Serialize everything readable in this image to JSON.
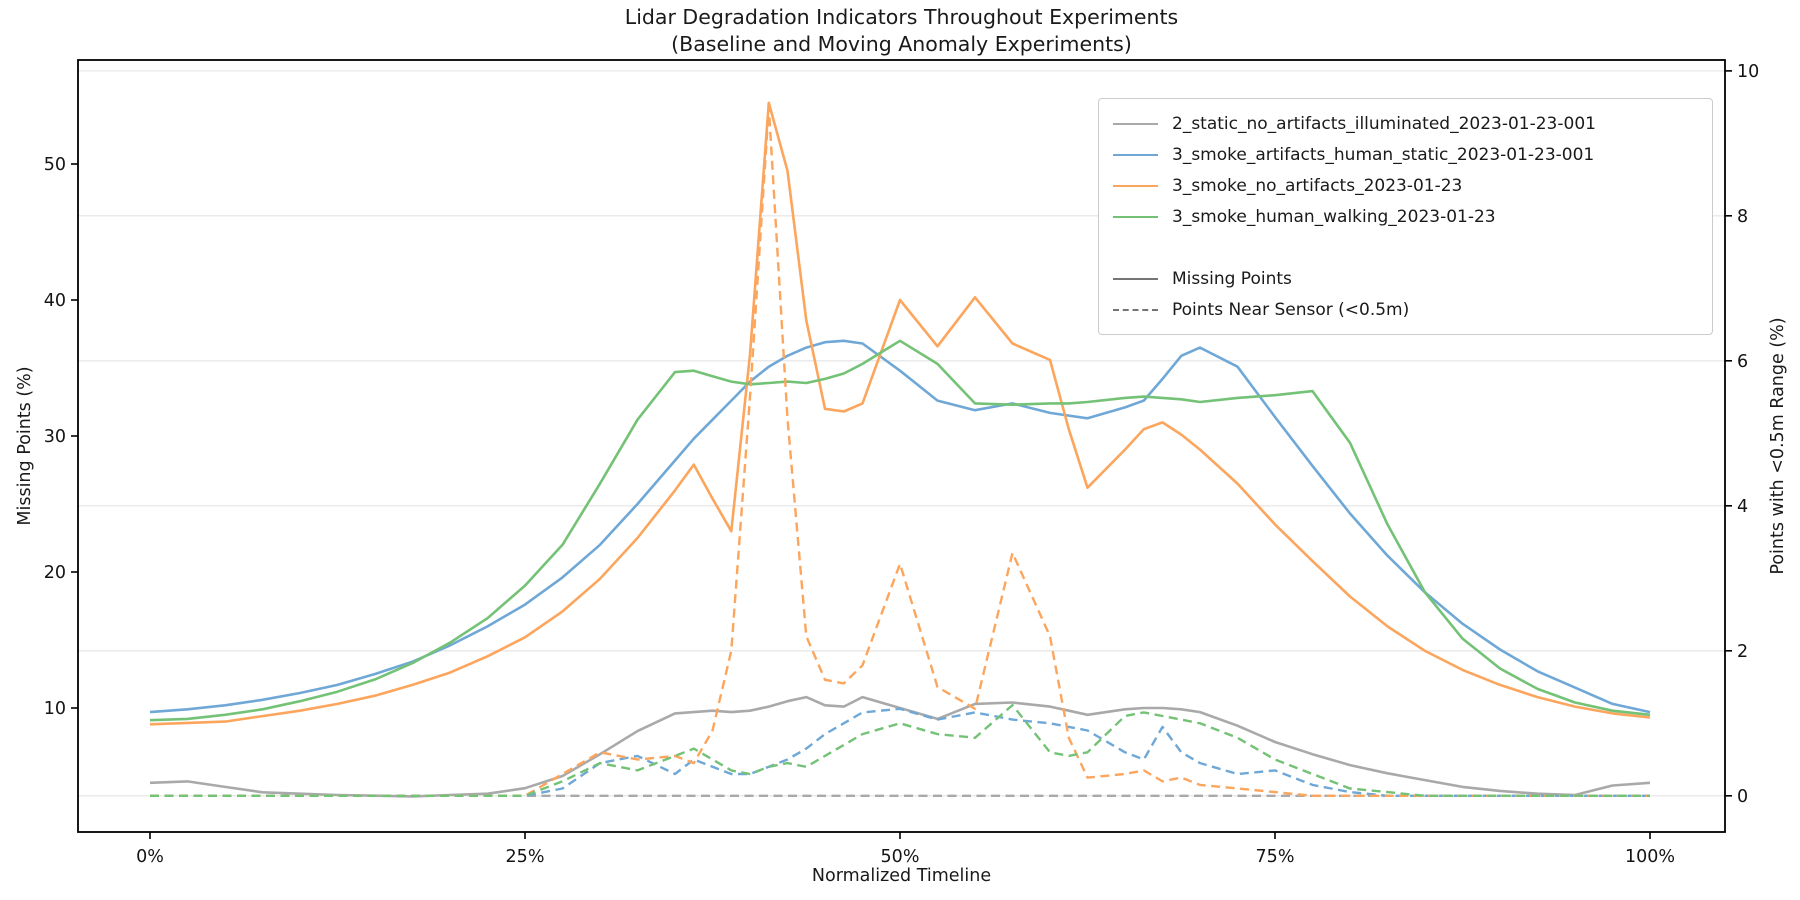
{
  "chart_data": {
    "type": "line",
    "title": "Lidar Degradation Indicators Throughout Experiments",
    "subtitle": "(Baseline and Moving Anomaly Experiments)",
    "xlabel": "Normalized Timeline",
    "ylabel_left": "Missing Points (%)",
    "ylabel_right": "Points with <0.5m Range (%)",
    "legend_position": "upper right",
    "grid": "horizontal gridlines at right-axis ticks",
    "xlim": [
      -4.8,
      105
    ],
    "ylim_left": [
      0.88,
      57.65
    ],
    "ylim_right": [
      -0.5,
      10.15
    ],
    "xtick_values": [
      0,
      25,
      50,
      75,
      100
    ],
    "xtick_labels": [
      "0%",
      "25%",
      "50%",
      "75%",
      "100%"
    ],
    "yticks_left": [
      10,
      20,
      30,
      40,
      50
    ],
    "yticks_right": [
      0,
      2,
      4,
      6,
      8,
      10
    ],
    "colors": {
      "grid": "#e8e8e8",
      "spine": "#000000",
      "text": "#1a1a1a",
      "legend_style_entries": "#757575"
    },
    "x_percent": [
      0,
      2.5,
      5,
      7.5,
      10,
      12.5,
      15,
      17.5,
      20,
      22.5,
      25,
      27.5,
      30,
      32.5,
      35,
      36.25,
      37.5,
      38.75,
      40,
      41.25,
      42.5,
      43.75,
      45,
      46.25,
      47.5,
      50,
      52.5,
      55,
      57.5,
      60,
      61.25,
      62.5,
      65,
      66.25,
      67.5,
      68.75,
      70,
      72.5,
      75,
      77.5,
      80,
      82.5,
      85,
      87.5,
      90,
      92.5,
      95,
      97.5,
      100
    ],
    "series": [
      {
        "name": "2_static_no_artifacts_illuminated_2023-01-23-001",
        "color": "#a9a9a9",
        "missing_points": [
          4.5,
          4.6,
          4.2,
          3.8,
          3.7,
          3.6,
          3.55,
          3.5,
          3.6,
          3.7,
          4.1,
          5.0,
          6.6,
          8.3,
          9.6,
          9.7,
          9.8,
          9.7,
          9.8,
          10.1,
          10.5,
          10.8,
          10.2,
          10.1,
          10.8,
          10.0,
          9.2,
          10.3,
          10.4,
          10.1,
          9.8,
          9.5,
          9.9,
          10.0,
          10.0,
          9.9,
          9.7,
          8.7,
          7.5,
          6.6,
          5.8,
          5.2,
          4.7,
          4.2,
          3.9,
          3.7,
          3.6,
          4.3,
          4.5
        ],
        "points_near_sensor": [
          0,
          0,
          0,
          0,
          0,
          0,
          0,
          0,
          0,
          0,
          0,
          0,
          0,
          0,
          0,
          0,
          0,
          0,
          0,
          0,
          0,
          0,
          0,
          0,
          0,
          0,
          0,
          0,
          0,
          0,
          0,
          0,
          0,
          0,
          0,
          0,
          0,
          0,
          0,
          0,
          0,
          0,
          0,
          0,
          0,
          0,
          0,
          0,
          0
        ]
      },
      {
        "name": "3_smoke_artifacts_human_static_2023-01-23-001",
        "color": "#6fa8d6",
        "missing_points": [
          9.7,
          9.9,
          10.2,
          10.6,
          11.1,
          11.7,
          12.5,
          13.4,
          14.6,
          16.0,
          17.6,
          19.6,
          22.0,
          25.0,
          28.2,
          29.8,
          31.2,
          32.6,
          34.0,
          35.1,
          35.9,
          36.5,
          36.9,
          37.0,
          36.8,
          34.8,
          32.6,
          31.9,
          32.4,
          31.7,
          31.5,
          31.3,
          32.1,
          32.6,
          34.2,
          35.9,
          36.5,
          35.1,
          31.4,
          27.8,
          24.3,
          21.2,
          18.5,
          16.2,
          14.3,
          12.7,
          11.5,
          10.3,
          9.7
        ],
        "points_near_sensor": [
          0,
          0,
          0,
          0,
          0,
          0,
          0,
          0,
          0,
          0,
          0,
          0.1,
          0.45,
          0.55,
          0.3,
          0.5,
          0.4,
          0.3,
          0.3,
          0.4,
          0.5,
          0.65,
          0.85,
          1.0,
          1.15,
          1.2,
          1.05,
          1.15,
          1.05,
          1.0,
          0.95,
          0.9,
          0.6,
          0.5,
          0.95,
          0.6,
          0.45,
          0.3,
          0.35,
          0.15,
          0.05,
          0,
          0,
          0,
          0,
          0,
          0,
          0,
          0
        ]
      },
      {
        "name": "3_smoke_no_artifacts_2023-01-23",
        "color": "#fca55d",
        "missing_points": [
          8.8,
          8.9,
          9.0,
          9.4,
          9.8,
          10.3,
          10.9,
          11.7,
          12.6,
          13.8,
          15.2,
          17.1,
          19.5,
          22.5,
          26.0,
          27.9,
          25.4,
          23.0,
          36.0,
          54.5,
          49.5,
          38.5,
          32.0,
          31.8,
          32.4,
          40.0,
          36.6,
          40.2,
          36.8,
          35.6,
          30.5,
          26.2,
          29.0,
          30.5,
          31.0,
          30.1,
          29.0,
          26.5,
          23.5,
          20.8,
          18.2,
          16.0,
          14.2,
          12.8,
          11.7,
          10.8,
          10.1,
          9.6,
          9.3
        ],
        "points_near_sensor": [
          0,
          0,
          0,
          0,
          0,
          0,
          0,
          0,
          0,
          0,
          0,
          0.3,
          0.6,
          0.5,
          0.55,
          0.45,
          0.9,
          2.0,
          5.5,
          9.5,
          5.2,
          2.2,
          1.6,
          1.55,
          1.8,
          3.2,
          1.5,
          1.2,
          3.35,
          2.2,
          0.8,
          0.25,
          0.3,
          0.35,
          0.2,
          0.25,
          0.15,
          0.1,
          0.05,
          0,
          0,
          0,
          0,
          0,
          0,
          0,
          0,
          0,
          0
        ]
      },
      {
        "name": "3_smoke_human_walking_2023-01-23",
        "color": "#74c276",
        "missing_points": [
          9.1,
          9.2,
          9.5,
          9.9,
          10.5,
          11.2,
          12.1,
          13.3,
          14.8,
          16.6,
          19.0,
          22.0,
          26.5,
          31.2,
          34.7,
          34.8,
          34.4,
          34.0,
          33.8,
          33.9,
          34.0,
          33.9,
          34.2,
          34.6,
          35.3,
          37.0,
          35.3,
          32.4,
          32.3,
          32.4,
          32.4,
          32.5,
          32.8,
          32.9,
          32.8,
          32.7,
          32.5,
          32.8,
          33.0,
          33.3,
          29.5,
          23.5,
          18.5,
          15.1,
          12.9,
          11.4,
          10.4,
          9.8,
          9.5
        ],
        "points_near_sensor": [
          0,
          0,
          0,
          0,
          0,
          0,
          0,
          0,
          0,
          0,
          0,
          0.2,
          0.45,
          0.35,
          0.55,
          0.65,
          0.5,
          0.35,
          0.3,
          0.4,
          0.45,
          0.4,
          0.55,
          0.7,
          0.85,
          1.0,
          0.85,
          0.8,
          1.25,
          0.6,
          0.55,
          0.6,
          1.1,
          1.15,
          1.1,
          1.05,
          1.0,
          0.8,
          0.5,
          0.3,
          0.1,
          0.05,
          0,
          0,
          0,
          0,
          0,
          0,
          0
        ]
      }
    ],
    "legend_style_entries": [
      {
        "label": "Missing Points",
        "dash": "solid"
      },
      {
        "label": "Points Near Sensor (<0.5m)",
        "dash": "dashed"
      }
    ]
  }
}
